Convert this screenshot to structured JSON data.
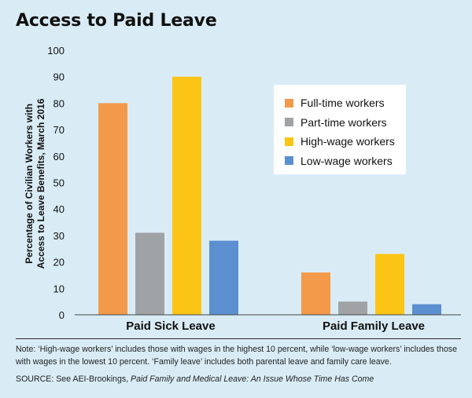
{
  "title": "Access to Paid Leave",
  "chart_data": {
    "type": "bar",
    "ylabel_line1": "Percentage of Civilian Workers with",
    "ylabel_line2": "Access to Leave Benefits, March 2016",
    "ylim": [
      0,
      100
    ],
    "yticks": [
      0,
      10,
      20,
      30,
      40,
      50,
      60,
      70,
      80,
      90,
      100
    ],
    "categories": [
      "Paid Sick Leave",
      "Paid Family Leave"
    ],
    "series": [
      {
        "name": "Full-time workers",
        "color": "#f39a4a",
        "values": [
          80,
          16
        ]
      },
      {
        "name": "Part-time workers",
        "color": "#a0a3a6",
        "values": [
          31,
          5
        ]
      },
      {
        "name": "High-wage workers",
        "color": "#fcc415",
        "values": [
          90,
          23
        ]
      },
      {
        "name": "Low-wage workers",
        "color": "#5b8fd0",
        "values": [
          28,
          4
        ]
      }
    ],
    "legend_position": "top-right",
    "grid": false
  },
  "note": "Note: ‘High-wage workers’ includes those with wages in the highest 10 percent, while ‘low-wage workers’ includes those with wages in the lowest 10 percent. ‘Family leave’ includes both parental leave and family care leave.",
  "source_prefix": "SOURCE: See AEI-Brookings, ",
  "source_title": "Paid Family and Medical Leave: An Issue Whose Time Has Come"
}
